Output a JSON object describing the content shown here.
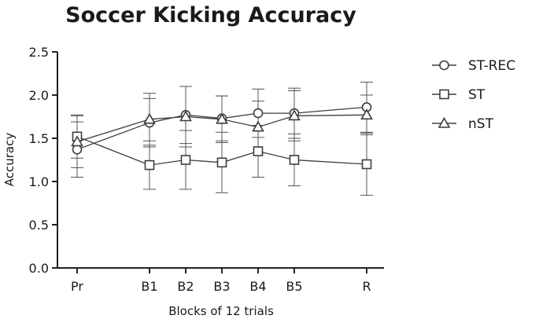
{
  "chart_data": {
    "type": "line",
    "title": "Soccer Kicking Accuracy",
    "xlabel": "Blocks of 12 trials",
    "ylabel": "Accuracy",
    "categories": [
      "Pr",
      "B1",
      "B2",
      "B3",
      "B4",
      "B5",
      "R"
    ],
    "ylim": [
      0,
      2.5
    ],
    "yticks": [
      "0.0",
      "0.5",
      "1.0",
      "1.5",
      "2.0",
      "2.5"
    ],
    "grid": false,
    "legend_position": "right",
    "series": [
      {
        "name": "ST-REC",
        "marker": "circle",
        "values": [
          1.37,
          1.68,
          1.77,
          1.73,
          1.79,
          1.79,
          1.86
        ],
        "error": [
          0.32,
          0.28,
          0.33,
          0.26,
          0.28,
          0.29,
          0.29
        ]
      },
      {
        "name": "ST",
        "marker": "square",
        "values": [
          1.52,
          1.19,
          1.25,
          1.22,
          1.35,
          1.25,
          1.2
        ],
        "error": [
          0.25,
          0.28,
          0.34,
          0.35,
          0.3,
          0.3,
          0.36
        ]
      },
      {
        "name": "nST",
        "marker": "triangle",
        "values": [
          1.46,
          1.72,
          1.75,
          1.72,
          1.63,
          1.76,
          1.77
        ],
        "error": [
          0.3,
          0.3,
          0.35,
          0.27,
          0.3,
          0.29,
          0.23
        ]
      }
    ]
  }
}
